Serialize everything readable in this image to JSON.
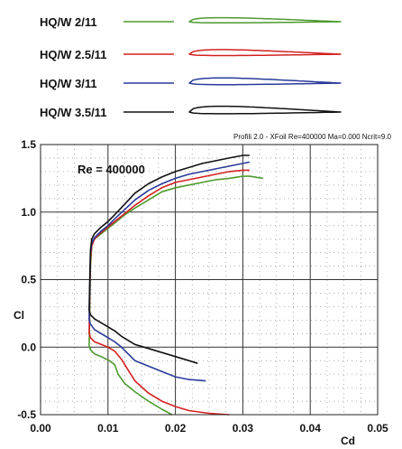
{
  "chart_data": {
    "type": "line",
    "title": "Profili 2.0 - XFoil Re=400000 Ma=0.000 Ncrit=9.0",
    "annotation": "Re = 400000",
    "xlabel": "Cd",
    "ylabel": "Cl",
    "xlim": [
      0.0,
      0.05
    ],
    "ylim": [
      -0.5,
      1.5
    ],
    "xticks": [
      "0.00",
      "0.01",
      "0.02",
      "0.03",
      "0.04",
      "0.05"
    ],
    "yticks": [
      "-0.5",
      "0.0",
      "0.5",
      "1.0",
      "1.5"
    ],
    "grid": true,
    "legend_position": "top",
    "series": [
      {
        "name": "HQ/W 2/11",
        "color": "#4e9a2e",
        "profile_thickness": 0.5,
        "upper": [
          [
            0.0072,
            0.01
          ],
          [
            0.0073,
            0.3
          ],
          [
            0.0074,
            0.6
          ],
          [
            0.0076,
            0.75
          ],
          [
            0.008,
            0.8
          ],
          [
            0.009,
            0.84
          ],
          [
            0.01,
            0.88
          ],
          [
            0.011,
            0.92
          ],
          [
            0.0125,
            0.98
          ],
          [
            0.014,
            1.03
          ],
          [
            0.016,
            1.09
          ],
          [
            0.018,
            1.15
          ],
          [
            0.02,
            1.18
          ],
          [
            0.022,
            1.2
          ],
          [
            0.024,
            1.22
          ],
          [
            0.026,
            1.24
          ],
          [
            0.028,
            1.25
          ],
          [
            0.03,
            1.265
          ],
          [
            0.031,
            1.265
          ],
          [
            0.033,
            1.25
          ]
        ],
        "lower": [
          [
            0.0072,
            0.01
          ],
          [
            0.0074,
            -0.02
          ],
          [
            0.008,
            -0.05
          ],
          [
            0.009,
            -0.07
          ],
          [
            0.0102,
            -0.1
          ],
          [
            0.011,
            -0.13
          ],
          [
            0.0115,
            -0.2
          ],
          [
            0.0125,
            -0.27
          ],
          [
            0.014,
            -0.33
          ],
          [
            0.016,
            -0.4
          ],
          [
            0.018,
            -0.46
          ],
          [
            0.0195,
            -0.5
          ]
        ]
      },
      {
        "name": "HQ/W 2.5/11",
        "color": "#d42020",
        "profile_thickness": 0.65,
        "upper": [
          [
            0.0072,
            0.1
          ],
          [
            0.0073,
            0.4
          ],
          [
            0.0074,
            0.65
          ],
          [
            0.0076,
            0.75
          ],
          [
            0.008,
            0.8
          ],
          [
            0.009,
            0.85
          ],
          [
            0.01,
            0.89
          ],
          [
            0.011,
            0.93
          ],
          [
            0.0125,
            0.99
          ],
          [
            0.014,
            1.05
          ],
          [
            0.016,
            1.12
          ],
          [
            0.018,
            1.18
          ],
          [
            0.02,
            1.22
          ],
          [
            0.022,
            1.24
          ],
          [
            0.024,
            1.26
          ],
          [
            0.026,
            1.28
          ],
          [
            0.028,
            1.3
          ],
          [
            0.03,
            1.31
          ],
          [
            0.031,
            1.31
          ]
        ],
        "lower": [
          [
            0.0072,
            0.1
          ],
          [
            0.0074,
            0.07
          ],
          [
            0.008,
            0.04
          ],
          [
            0.009,
            0.02
          ],
          [
            0.01,
            0.0
          ],
          [
            0.011,
            -0.03
          ],
          [
            0.012,
            -0.09
          ],
          [
            0.013,
            -0.17
          ],
          [
            0.014,
            -0.25
          ],
          [
            0.016,
            -0.34
          ],
          [
            0.018,
            -0.4
          ],
          [
            0.02,
            -0.44
          ],
          [
            0.022,
            -0.47
          ],
          [
            0.025,
            -0.49
          ],
          [
            0.028,
            -0.5
          ]
        ]
      },
      {
        "name": "HQ/W 3/11",
        "color": "#2a3a9a",
        "profile_thickness": 0.8,
        "upper": [
          [
            0.0072,
            0.2
          ],
          [
            0.0073,
            0.45
          ],
          [
            0.0074,
            0.7
          ],
          [
            0.0076,
            0.77
          ],
          [
            0.008,
            0.81
          ],
          [
            0.009,
            0.86
          ],
          [
            0.01,
            0.9
          ],
          [
            0.011,
            0.95
          ],
          [
            0.0125,
            1.02
          ],
          [
            0.014,
            1.09
          ],
          [
            0.016,
            1.16
          ],
          [
            0.018,
            1.21
          ],
          [
            0.02,
            1.25
          ],
          [
            0.022,
            1.28
          ],
          [
            0.024,
            1.3
          ],
          [
            0.026,
            1.32
          ],
          [
            0.028,
            1.34
          ],
          [
            0.03,
            1.36
          ],
          [
            0.031,
            1.37
          ]
        ],
        "lower": [
          [
            0.0072,
            0.2
          ],
          [
            0.0074,
            0.17
          ],
          [
            0.008,
            0.13
          ],
          [
            0.009,
            0.1
          ],
          [
            0.01,
            0.07
          ],
          [
            0.011,
            0.04
          ],
          [
            0.012,
            0.0
          ],
          [
            0.013,
            -0.05
          ],
          [
            0.014,
            -0.1
          ],
          [
            0.016,
            -0.14
          ],
          [
            0.018,
            -0.18
          ],
          [
            0.02,
            -0.22
          ],
          [
            0.022,
            -0.24
          ],
          [
            0.0245,
            -0.25
          ]
        ]
      },
      {
        "name": "HQ/W 3.5/11",
        "color": "#111111",
        "profile_thickness": 0.95,
        "upper": [
          [
            0.0072,
            0.27
          ],
          [
            0.0073,
            0.5
          ],
          [
            0.0074,
            0.72
          ],
          [
            0.0076,
            0.8
          ],
          [
            0.008,
            0.84
          ],
          [
            0.009,
            0.89
          ],
          [
            0.01,
            0.93
          ],
          [
            0.011,
            0.98
          ],
          [
            0.0125,
            1.06
          ],
          [
            0.014,
            1.14
          ],
          [
            0.016,
            1.21
          ],
          [
            0.018,
            1.26
          ],
          [
            0.02,
            1.3
          ],
          [
            0.022,
            1.33
          ],
          [
            0.024,
            1.36
          ],
          [
            0.026,
            1.38
          ],
          [
            0.028,
            1.4
          ],
          [
            0.03,
            1.42
          ],
          [
            0.031,
            1.42
          ]
        ],
        "lower": [
          [
            0.0072,
            0.27
          ],
          [
            0.0074,
            0.24
          ],
          [
            0.008,
            0.21
          ],
          [
            0.009,
            0.18
          ],
          [
            0.01,
            0.15
          ],
          [
            0.011,
            0.12
          ],
          [
            0.012,
            0.08
          ],
          [
            0.013,
            0.05
          ],
          [
            0.014,
            0.02
          ],
          [
            0.016,
            -0.01
          ],
          [
            0.018,
            -0.04
          ],
          [
            0.02,
            -0.07
          ],
          [
            0.022,
            -0.1
          ],
          [
            0.0233,
            -0.12
          ]
        ]
      }
    ]
  }
}
